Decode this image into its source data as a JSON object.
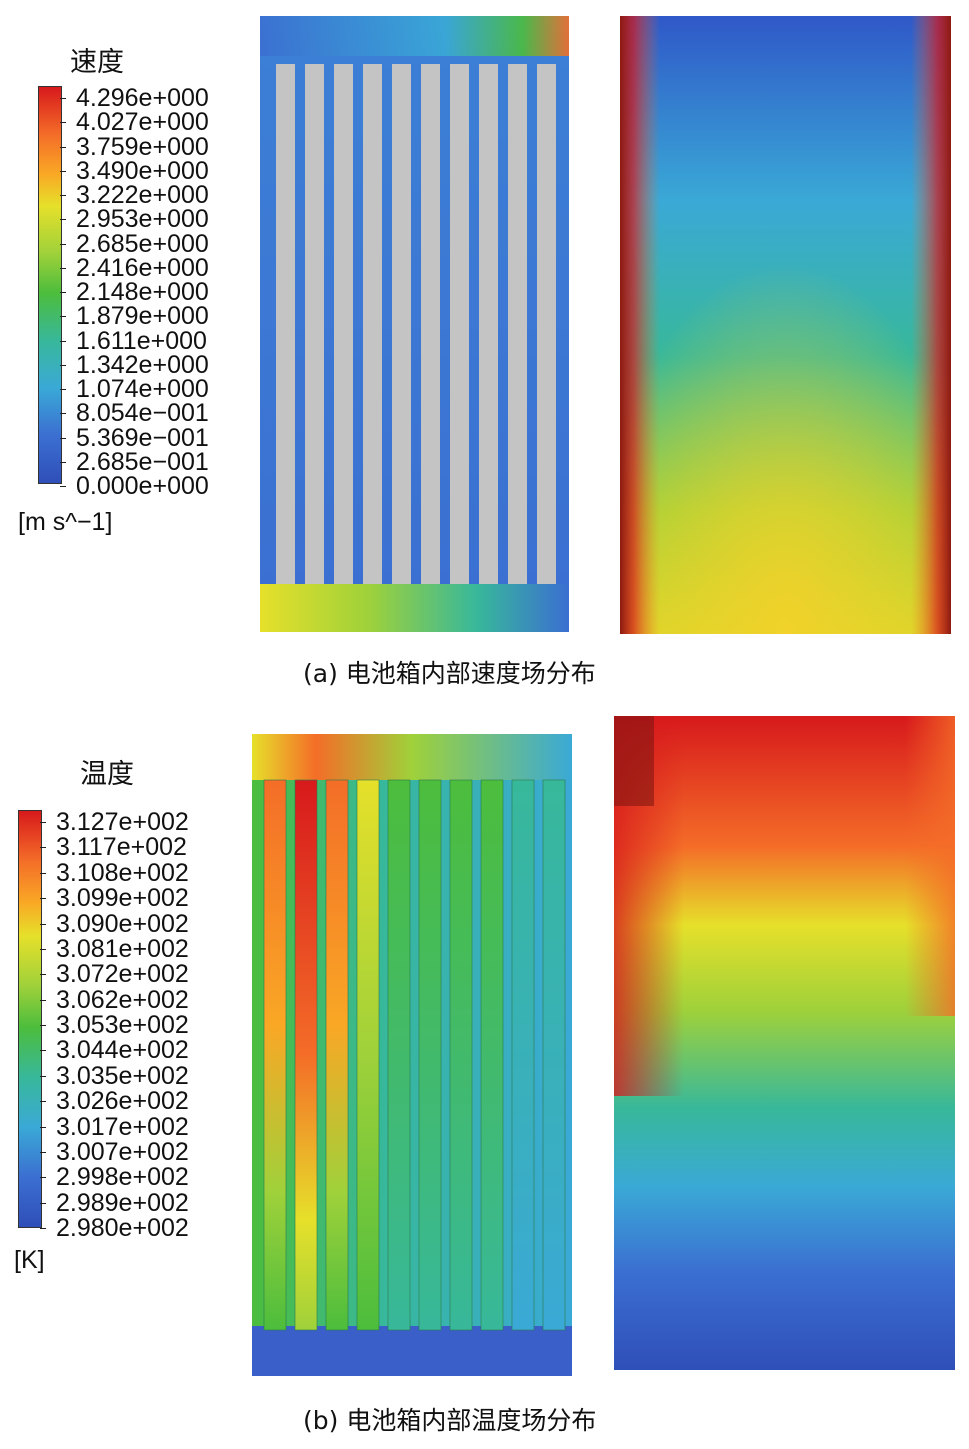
{
  "velocity": {
    "title": "速度",
    "unit": "[m s^−1]",
    "ticks": [
      "4.296e+000",
      "4.027e+000",
      "3.759e+000",
      "3.490e+000",
      "3.222e+000",
      "2.953e+000",
      "2.685e+000",
      "2.416e+000",
      "2.148e+000",
      "1.879e+000",
      "1.611e+000",
      "1.342e+000",
      "1.074e+000",
      "8.054e−001",
      "5.369e−001",
      "2.685e−001",
      "0.000e+000"
    ],
    "caption": "(a) 电池箱内部速度场分布"
  },
  "temperature": {
    "title": "温度",
    "unit": "[K]",
    "ticks": [
      "3.127e+002",
      "3.117e+002",
      "3.108e+002",
      "3.099e+002",
      "3.090e+002",
      "3.081e+002",
      "3.072e+002",
      "3.062e+002",
      "3.053e+002",
      "3.044e+002",
      "3.035e+002",
      "3.026e+002",
      "3.017e+002",
      "3.007e+002",
      "2.998e+002",
      "2.989e+002",
      "2.980e+002"
    ],
    "caption": "(b) 电池箱内部温度场分布"
  },
  "colors": {
    "scale": [
      "#d7191c",
      "#f46d28",
      "#f9a825",
      "#e6e02a",
      "#9fd13a",
      "#4cbd3c",
      "#38b89a",
      "#3aa9d6",
      "#3b6fd1",
      "#2f4fb8"
    ],
    "cell_gray": "#c4c4c4"
  }
}
